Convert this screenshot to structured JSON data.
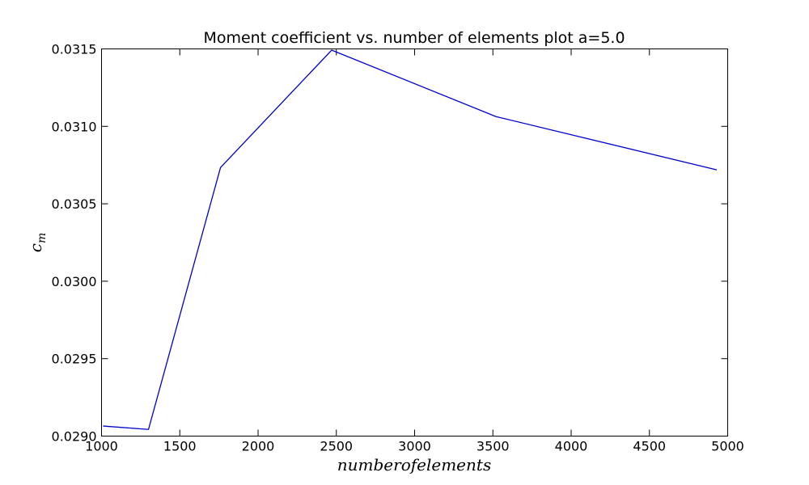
{
  "chart_data": {
    "type": "line",
    "title": "Moment coefficient vs. number of elements plot a=5.0",
    "xlabel": "numberofelements",
    "ylabel": "c_m",
    "ylabel_display": {
      "base": "c",
      "sub": "m"
    },
    "xlim": [
      1000,
      5000
    ],
    "ylim": [
      0.029,
      0.0315
    ],
    "x_ticks": [
      1000,
      1500,
      2000,
      2500,
      3000,
      3500,
      4000,
      4500,
      5000
    ],
    "x_tick_labels": [
      "1000",
      "1500",
      "2000",
      "2500",
      "3000",
      "3500",
      "4000",
      "4500",
      "5000"
    ],
    "y_ticks": [
      0.029,
      0.0295,
      0.03,
      0.0305,
      0.031,
      0.0315
    ],
    "y_tick_labels": [
      "0.0290",
      "0.0295",
      "0.0300",
      "0.0305",
      "0.0310",
      "0.0315"
    ],
    "grid": false,
    "series": [
      {
        "color": "#0000cc",
        "x": [
          1010,
          1300,
          1760,
          2470,
          3520,
          4930
        ],
        "y": [
          0.029065,
          0.029043,
          0.030734,
          0.031492,
          0.031063,
          0.030719
        ]
      }
    ]
  }
}
